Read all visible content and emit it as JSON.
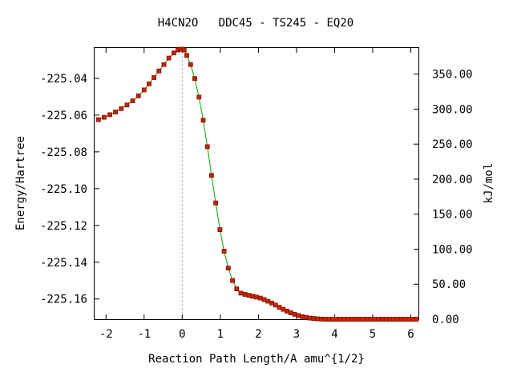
{
  "chart_data": {
    "type": "line",
    "title": "H4CN2O   DDC45 - TS245 - EQ20",
    "xlabel": "Reaction Path Length/A amu^{1/2}",
    "ylabel": "Energy/Hartree",
    "y2label": "kJ/mol",
    "xlim": [
      -2.3,
      6.2
    ],
    "ylim": [
      -225.171,
      -225.0235
    ],
    "y2lim": [
      0,
      387.3
    ],
    "xticks": [
      "-2",
      "-1",
      "0",
      "1",
      "2",
      "3",
      "4",
      "5",
      "6"
    ],
    "yticks": [
      "-225.04",
      "-225.06",
      "-225.08",
      "-225.10",
      "-225.12",
      "-225.14",
      "-225.16"
    ],
    "y2ticks": [
      "0.00",
      "50.00",
      "100.00",
      "150.00",
      "200.00",
      "250.00",
      "300.00",
      "350.00"
    ],
    "ts_x": 0,
    "grid": false,
    "colors": {
      "line": "#00aa00",
      "marker_fill": "#cc2200",
      "marker_edge": "#7a1000",
      "ts_line": "#a0a0a0"
    },
    "series": [
      {
        "x": [
          -2.2,
          -2.05,
          -1.9,
          -1.75,
          -1.6,
          -1.45,
          -1.3,
          -1.15,
          -1.0,
          -0.87,
          -0.74,
          -0.61,
          -0.48,
          -0.35,
          -0.22,
          -0.11,
          -0.05,
          0.0,
          0.05,
          0.12,
          0.22,
          0.33,
          0.44,
          0.55,
          0.66,
          0.77,
          0.88,
          0.99,
          1.1,
          1.21,
          1.32,
          1.43,
          1.54,
          1.65,
          1.75,
          1.85,
          1.95,
          2.05,
          2.15,
          2.25,
          2.35,
          2.45,
          2.55,
          2.65,
          2.75,
          2.85,
          2.95,
          3.05,
          3.15,
          3.25,
          3.35,
          3.45,
          3.55,
          3.65,
          3.75,
          3.85,
          3.95,
          4.05,
          4.15,
          4.25,
          4.35,
          4.45,
          4.55,
          4.65,
          4.75,
          4.85,
          4.95,
          5.05,
          5.15,
          5.25,
          5.35,
          5.45,
          5.55,
          5.65,
          5.75,
          5.85,
          5.95,
          6.05,
          6.15
        ],
        "y": [
          -225.0625,
          -225.0612,
          -225.0598,
          -225.0583,
          -225.0565,
          -225.0545,
          -225.0522,
          -225.0495,
          -225.0463,
          -225.043,
          -225.0396,
          -225.036,
          -225.0325,
          -225.029,
          -225.0262,
          -225.0246,
          -225.0242,
          -225.0242,
          -225.0246,
          -225.0275,
          -225.0325,
          -225.0401,
          -225.0502,
          -225.0628,
          -225.0772,
          -225.0928,
          -225.1078,
          -225.1223,
          -225.134,
          -225.1432,
          -225.15,
          -225.1545,
          -225.1568,
          -225.1575,
          -225.158,
          -225.1585,
          -225.159,
          -225.1595,
          -225.1603,
          -225.1612,
          -225.1622,
          -225.1633,
          -225.1645,
          -225.1656,
          -225.1666,
          -225.1675,
          -225.1683,
          -225.169,
          -225.1696,
          -225.17,
          -225.1704,
          -225.1706,
          -225.1708,
          -225.1709,
          -225.171,
          -225.171,
          -225.171,
          -225.171,
          -225.171,
          -225.171,
          -225.171,
          -225.171,
          -225.171,
          -225.171,
          -225.171,
          -225.171,
          -225.171,
          -225.171,
          -225.171,
          -225.171,
          -225.171,
          -225.171,
          -225.171,
          -225.171,
          -225.171,
          -225.171,
          -225.171,
          -225.171,
          -225.171
        ]
      }
    ]
  }
}
